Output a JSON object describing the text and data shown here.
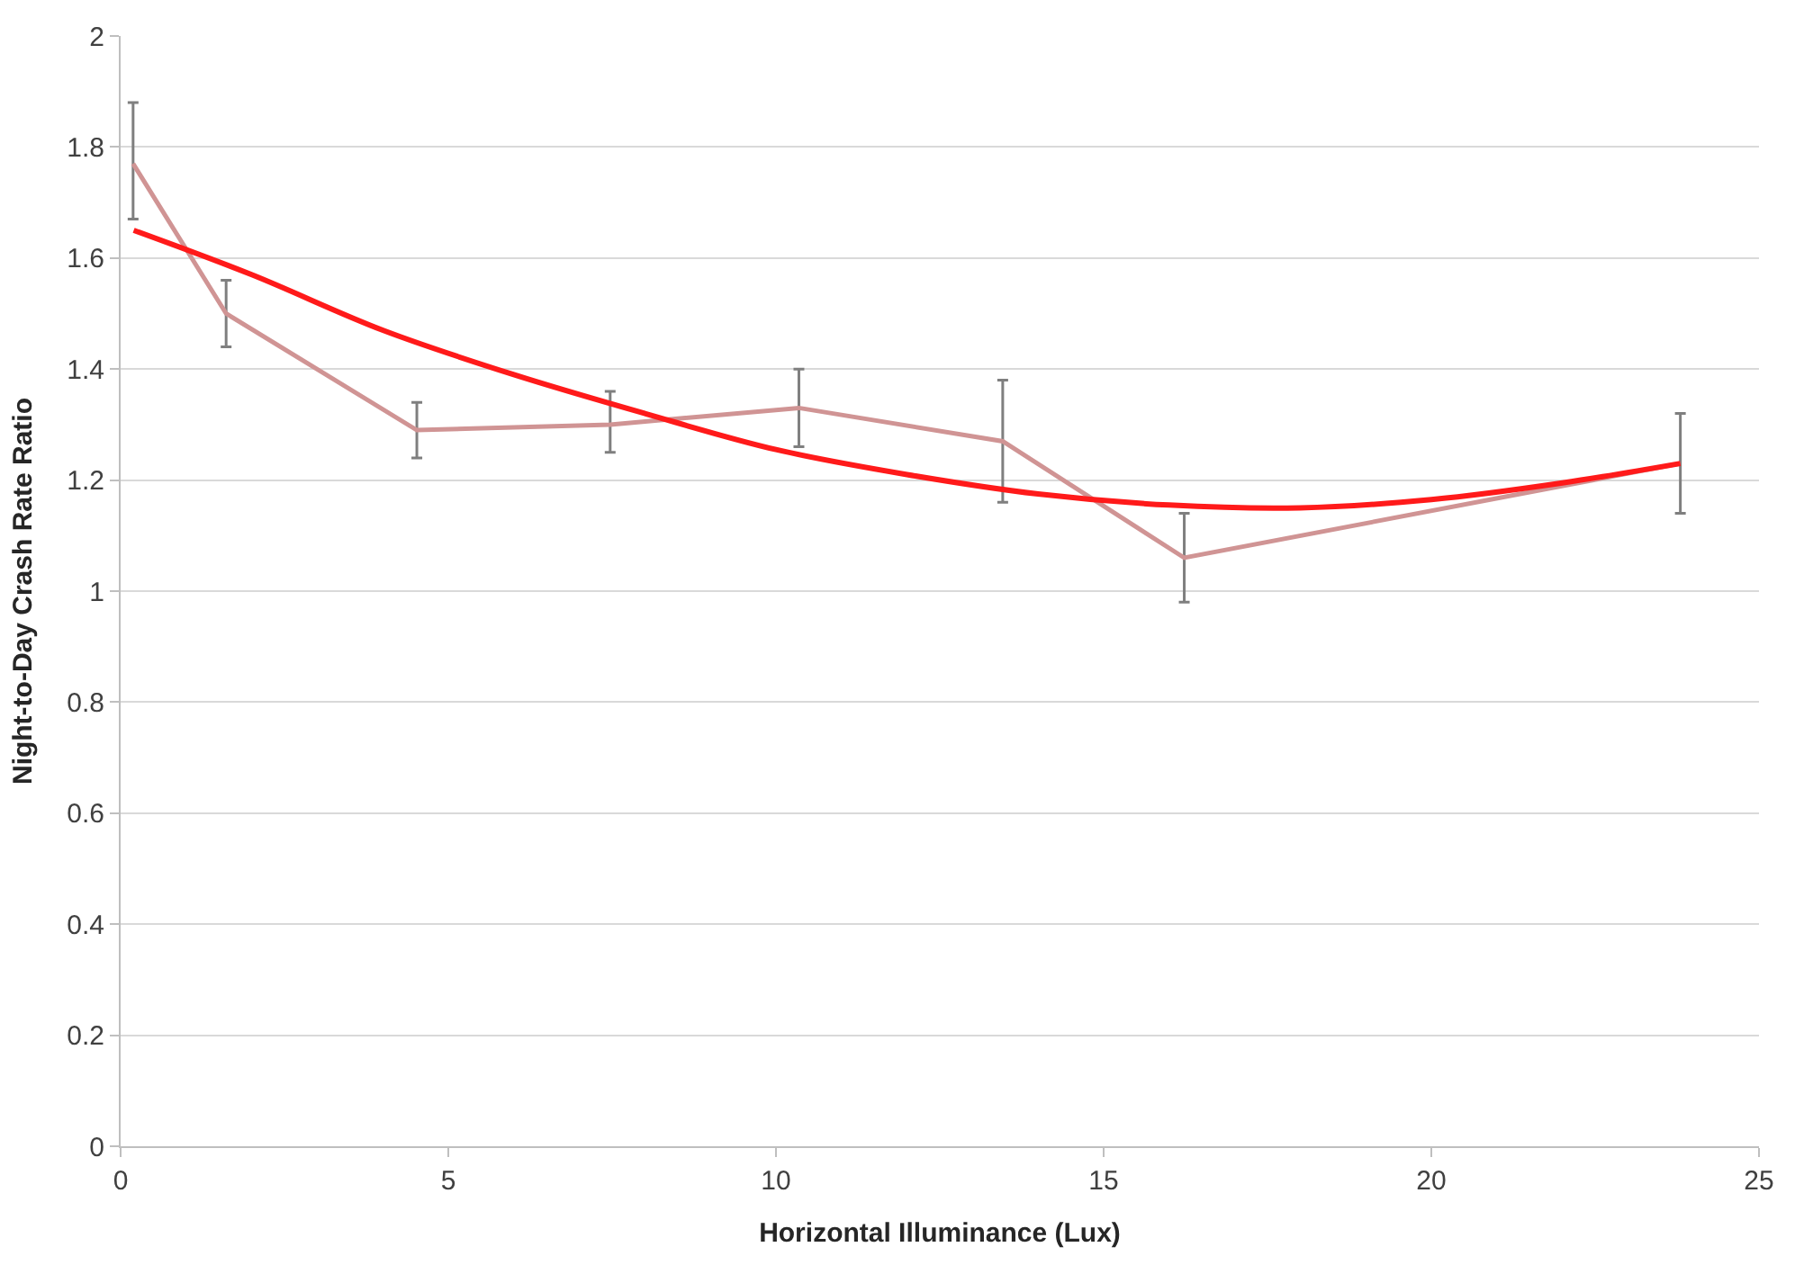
{
  "chart_data": {
    "type": "line",
    "xlabel": "Horizontal Illuminance (Lux)",
    "ylabel": "Night-to-Day Crash Rate Ratio",
    "xlim": [
      0,
      25
    ],
    "xticks": [
      0,
      5,
      10,
      15,
      20,
      25
    ],
    "ylim": [
      0,
      2
    ],
    "yticks": [
      0,
      0.2,
      0.4,
      0.6,
      0.8,
      1,
      1.2,
      1.4,
      1.6,
      1.8,
      2
    ],
    "grid": "y",
    "marker": "none",
    "line_style": "solid",
    "series": [
      {
        "color": "#d09494",
        "x": [
          0.19,
          1.61,
          4.52,
          7.47,
          10.35,
          13.46,
          16.23,
          23.8
        ],
        "values": [
          1.77,
          1.5,
          1.29,
          1.3,
          1.33,
          1.27,
          1.06,
          1.23
        ],
        "errors": [
          [
            1.67,
            1.88
          ],
          [
            1.44,
            1.56
          ],
          [
            1.24,
            1.34
          ],
          [
            1.25,
            1.36
          ],
          [
            1.26,
            1.4
          ],
          [
            1.16,
            1.38
          ],
          [
            0.98,
            1.14
          ],
          [
            1.14,
            1.32
          ]
        ]
      },
      {
        "type": "line",
        "color": "#ff1a1a",
        "x": [
          0.2,
          2,
          4,
          6,
          8,
          10,
          12,
          14,
          16,
          18,
          20,
          22,
          23.8
        ],
        "values": [
          1.65,
          1.57,
          1.47,
          1.39,
          1.32,
          1.255,
          1.21,
          1.175,
          1.155,
          1.15,
          1.165,
          1.195,
          1.23
        ]
      }
    ]
  }
}
